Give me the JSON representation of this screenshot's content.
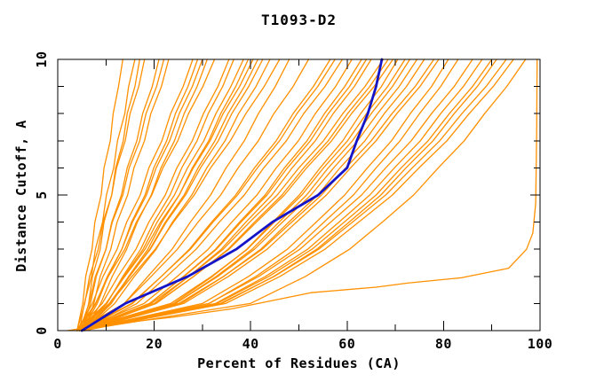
{
  "window": {
    "background": "#ffffff",
    "axis_color": "#000000"
  },
  "chart_data": {
    "type": "line",
    "title": "T1093-D2",
    "xlabel": "Percent of Residues (CA)",
    "ylabel": "Distance Cutoff, A",
    "xlim": [
      0,
      100
    ],
    "ylim": [
      0,
      10
    ],
    "x_major_ticks": [
      0,
      20,
      40,
      60,
      80,
      100
    ],
    "x_minor_ticks": [
      10,
      30,
      50,
      70,
      90
    ],
    "y_major_ticks": [
      0,
      5,
      10
    ],
    "y_minor_ticks": [
      1,
      2,
      3,
      4,
      6,
      7,
      8,
      9
    ],
    "grid": false,
    "legend": "none",
    "colors": {
      "model": "#ff9000",
      "highlight": "#1515c8",
      "frame": "#000000"
    },
    "cutoffs": [
      0,
      1,
      2,
      3,
      4,
      5,
      6,
      7,
      8,
      9,
      10
    ],
    "highlight_x": [
      5,
      14,
      27,
      37,
      44.5,
      54,
      60,
      62,
      64.3,
      66,
      67.2
    ],
    "outlier_points": [
      [
        2,
        0
      ],
      [
        11.5,
        0.25
      ],
      [
        24,
        0.5
      ],
      [
        36,
        0.8
      ],
      [
        52.5,
        1.4
      ],
      [
        66,
        1.6
      ],
      [
        72.5,
        1.75
      ],
      [
        83.8,
        1.95
      ],
      [
        93.5,
        2.3
      ],
      [
        97.2,
        3.0
      ],
      [
        98.5,
        3.6
      ],
      [
        99.1,
        4.7
      ],
      [
        99.3,
        7.3
      ],
      [
        99.4,
        10
      ]
    ],
    "series_x": [
      [
        4,
        5.2,
        5.8,
        7.1,
        7.7,
        9.0,
        9.6,
        10.9,
        11.5,
        12.6,
        13.5
      ],
      [
        4.5,
        5.5,
        7.0,
        7.8,
        9.3,
        10.1,
        11.6,
        12.4,
        13.9,
        14.7,
        16
      ],
      [
        5,
        6.4,
        7.2,
        8.8,
        9.6,
        11.2,
        12.0,
        13.6,
        14.4,
        16.0,
        17
      ],
      [
        4,
        5.6,
        6.6,
        8.4,
        9.4,
        11.2,
        12.2,
        14.0,
        15.0,
        16.8,
        18
      ],
      [
        5,
        6.8,
        8.0,
        10.0,
        11.2,
        13.2,
        14.4,
        16.4,
        17.6,
        19.6,
        21
      ],
      [
        4.5,
        6.5,
        7.8,
        10.0,
        11.3,
        13.5,
        14.8,
        17.0,
        18.3,
        20.5,
        22
      ],
      [
        5.5,
        7.5,
        8.8,
        11.0,
        12.3,
        14.5,
        15.8,
        18.0,
        19.3,
        21.5,
        23
      ],
      [
        4,
        7.2,
        9.4,
        12.3,
        14.3,
        17.1,
        18.9,
        21.6,
        23.4,
        26.0,
        28
      ],
      [
        5,
        8.2,
        10.4,
        13.3,
        15.3,
        18.1,
        19.9,
        22.6,
        24.4,
        27.0,
        29
      ],
      [
        4.5,
        7.9,
        10.3,
        13.3,
        15.5,
        18.4,
        20.4,
        23.2,
        25.2,
        27.9,
        30
      ],
      [
        5.5,
        8.9,
        11.3,
        14.3,
        16.5,
        19.4,
        21.4,
        24.2,
        26.2,
        28.9,
        31
      ],
      [
        4,
        7.8,
        10.5,
        13.9,
        16.3,
        19.5,
        21.8,
        24.9,
        27.1,
        30.1,
        32.5
      ],
      [
        4,
        9.2,
        12.5,
        16.2,
        18.9,
        22.3,
        24.7,
        27.9,
        30.2,
        33.2,
        35.5
      ],
      [
        5,
        10.2,
        13.5,
        17.2,
        19.9,
        23.3,
        25.7,
        28.9,
        31.2,
        34.2,
        36.5
      ],
      [
        4.5,
        10.1,
        13.7,
        17.7,
        20.6,
        24.2,
        26.9,
        30.3,
        32.8,
        35.9,
        38.5
      ],
      [
        5.5,
        11.1,
        14.7,
        18.7,
        21.6,
        25.2,
        27.9,
        31.3,
        33.8,
        36.9,
        39.5
      ],
      [
        4,
        10.0,
        13.9,
        18.1,
        21.3,
        25.2,
        28.1,
        31.6,
        34.3,
        37.7,
        40.5
      ],
      [
        5,
        11.0,
        14.9,
        19.1,
        22.3,
        26.2,
        29.1,
        32.6,
        35.3,
        38.7,
        41.5
      ],
      [
        4.5,
        10.7,
        14.8,
        19.2,
        22.5,
        26.5,
        29.6,
        33.3,
        36.1,
        39.6,
        42.5
      ],
      [
        5.5,
        11.8,
        15.9,
        20.4,
        23.8,
        27.8,
        30.9,
        34.7,
        37.5,
        41.1,
        44
      ],
      [
        4,
        10.8,
        15.4,
        20.2,
        24.0,
        28.3,
        31.7,
        35.8,
        39.0,
        42.8,
        46
      ],
      [
        5,
        13.8,
        18.7,
        23.7,
        27.5,
        31.7,
        34.9,
        38.7,
        41.6,
        45.1,
        48
      ],
      [
        4,
        13.8,
        19.4,
        24.8,
        29.1,
        33.8,
        37.4,
        41.6,
        44.8,
        48.8,
        52
      ],
      [
        5,
        15.5,
        21.5,
        27.3,
        31.9,
        36.9,
        40.8,
        45.3,
        48.8,
        53.0,
        56.5
      ],
      [
        4.5,
        15.3,
        21.5,
        27.5,
        32.2,
        37.3,
        41.4,
        46.0,
        49.6,
        53.9,
        57.5
      ],
      [
        5.5,
        16.4,
        22.6,
        28.7,
        33.5,
        38.7,
        42.7,
        47.4,
        51.0,
        55.4,
        59
      ],
      [
        4,
        17.9,
        24.8,
        31.2,
        36.1,
        41.3,
        45.3,
        49.9,
        53.4,
        57.6,
        61
      ],
      [
        5,
        19.1,
        26.1,
        32.7,
        37.7,
        43.0,
        47.0,
        51.7,
        55.3,
        59.5,
        63
      ],
      [
        4.5,
        19.0,
        26.2,
        32.9,
        38.0,
        43.4,
        47.6,
        52.4,
        56.1,
        60.5,
        64
      ],
      [
        5.5,
        20.0,
        27.2,
        33.9,
        39.0,
        44.4,
        48.6,
        53.4,
        57.1,
        61.5,
        65
      ],
      [
        4,
        19.4,
        27.2,
        34.3,
        39.8,
        45.5,
        50.0,
        55.1,
        59.1,
        63.7,
        67.5
      ],
      [
        5,
        20.4,
        28.2,
        35.3,
        40.8,
        46.5,
        51.0,
        56.1,
        60.1,
        64.7,
        68.5
      ],
      [
        4.5,
        20.3,
        28.2,
        35.5,
        41.2,
        47.0,
        51.6,
        56.8,
        60.9,
        65.6,
        69.5
      ],
      [
        5.5,
        24.0,
        32.1,
        39.2,
        44.6,
        50.1,
        54.4,
        59.1,
        62.8,
        67.1,
        70.5
      ],
      [
        4,
        23.4,
        31.9,
        39.3,
        44.9,
        50.6,
        55.1,
        60.1,
        64.0,
        68.4,
        72
      ],
      [
        5,
        24.4,
        32.9,
        40.3,
        45.9,
        51.6,
        56.1,
        61.1,
        65.0,
        69.4,
        73
      ],
      [
        4.5,
        24.4,
        33.2,
        40.8,
        46.6,
        52.5,
        57.2,
        62.2,
        66.3,
        70.8,
        74.5
      ],
      [
        5.5,
        25.6,
        34.4,
        42.1,
        47.9,
        53.9,
        58.5,
        63.7,
        67.7,
        72.3,
        76
      ],
      [
        4,
        25.1,
        34.4,
        42.4,
        48.5,
        54.7,
        59.7,
        65.0,
        69.3,
        74.1,
        78
      ],
      [
        5,
        26.1,
        35.4,
        43.4,
        49.5,
        55.7,
        60.7,
        66.0,
        70.3,
        75.1,
        79
      ],
      [
        4.5,
        30.0,
        39.6,
        47.6,
        53.6,
        59.5,
        64.2,
        69.2,
        73.1,
        77.5,
        81
      ],
      [
        5.5,
        31.4,
        41.1,
        49.2,
        55.2,
        61.3,
        66.0,
        71.0,
        75.0,
        79.4,
        83
      ],
      [
        4,
        31.3,
        41.7,
        50.2,
        56.6,
        63.0,
        68.0,
        73.3,
        77.5,
        82.2,
        86
      ],
      [
        5,
        32.7,
        43.1,
        51.8,
        58.3,
        64.7,
        69.8,
        75.2,
        79.4,
        84.1,
        88
      ],
      [
        4.5,
        33.0,
        43.8,
        52.7,
        59.4,
        66.0,
        71.2,
        76.8,
        81.2,
        86.0,
        90
      ],
      [
        5.5,
        34.0,
        44.8,
        53.7,
        60.4,
        67.0,
        72.2,
        77.8,
        82.2,
        87.0,
        91
      ],
      [
        4,
        33.7,
        44.9,
        54.1,
        61.1,
        68.0,
        73.5,
        79.2,
        83.8,
        88.8,
        93
      ],
      [
        5,
        34.8,
        46.1,
        55.4,
        62.4,
        69.4,
        74.9,
        80.7,
        85.3,
        90.3,
        94.5
      ],
      [
        4.5,
        39.9,
        51.4,
        60.5,
        67.3,
        73.8,
        78.9,
        84.3,
        88.5,
        93.1,
        97
      ]
    ]
  }
}
